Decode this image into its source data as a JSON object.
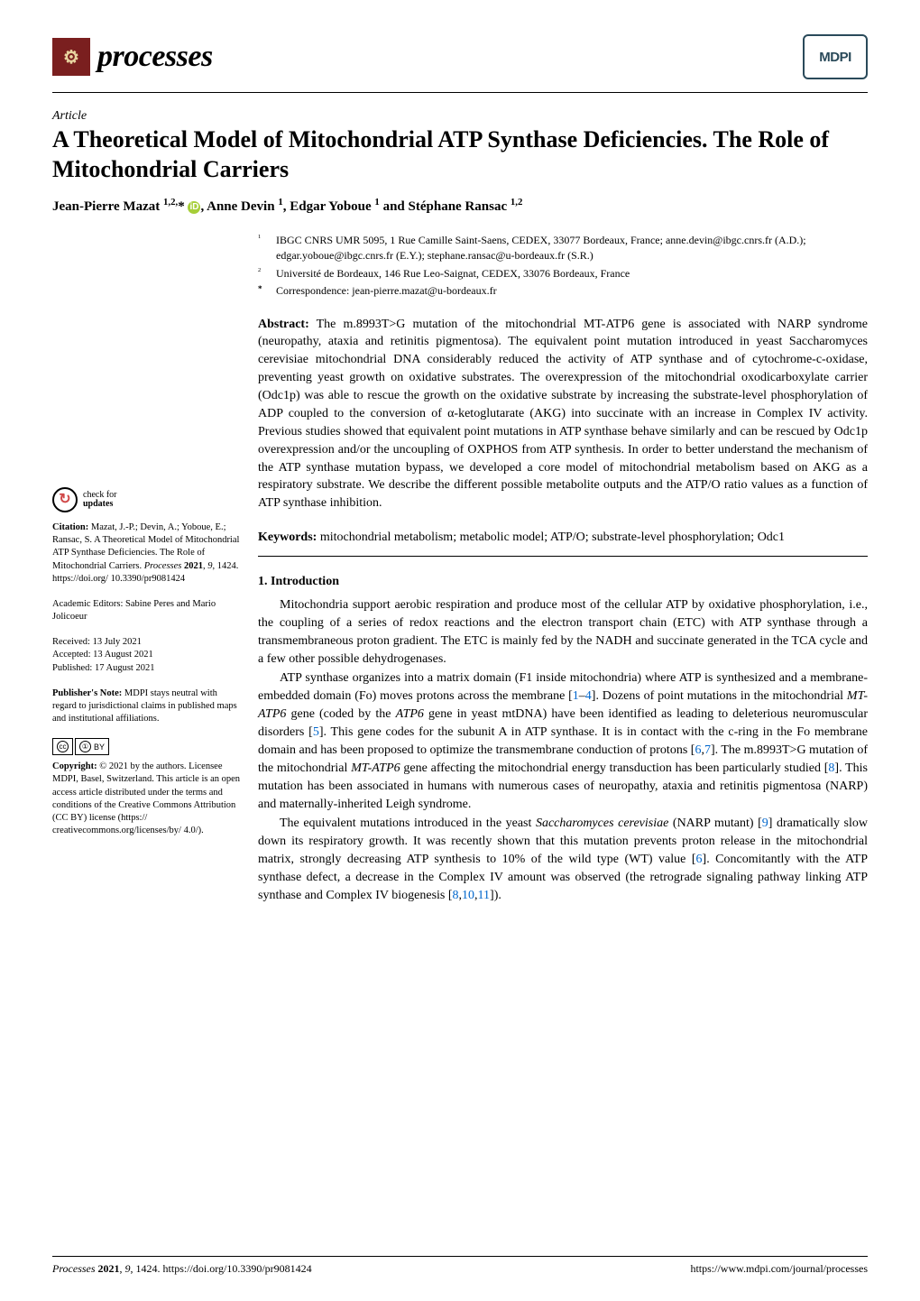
{
  "header": {
    "journal_name": "processes",
    "publisher_logo": "MDPI"
  },
  "article": {
    "type": "Article",
    "title": "A Theoretical Model of Mitochondrial ATP Synthase Deficiencies. The Role of Mitochondrial Carriers",
    "authors_html": "Jean-Pierre Mazat <sup>1,2,</sup>* <span class='orcid'>iD</span>, Anne Devin <sup>1</sup>, Edgar Yoboue <sup>1</sup> and Stéphane Ransac <sup>1,2</sup>"
  },
  "affiliations": [
    {
      "num": "1",
      "text": "IBGC CNRS UMR 5095, 1 Rue Camille Saint-Saens, CEDEX, 33077 Bordeaux, France; anne.devin@ibgc.cnrs.fr (A.D.); edgar.yoboue@ibgc.cnrs.fr (E.Y.); stephane.ransac@u-bordeaux.fr (S.R.)"
    },
    {
      "num": "2",
      "text": "Université de Bordeaux, 146 Rue Leo-Saignat, CEDEX, 33076 Bordeaux, France"
    },
    {
      "num": "*",
      "text": "Correspondence: jean-pierre.mazat@u-bordeaux.fr"
    }
  ],
  "abstract": {
    "label": "Abstract:",
    "text": " The m.8993T>G mutation of the mitochondrial MT-ATP6 gene is associated with NARP syndrome (neuropathy, ataxia and retinitis pigmentosa). The equivalent point mutation introduced in yeast Saccharomyces cerevisiae mitochondrial DNA considerably reduced the activity of ATP synthase and of cytochrome-c-oxidase, preventing yeast growth on oxidative substrates. The overexpression of the mitochondrial oxodicarboxylate carrier (Odc1p) was able to rescue the growth on the oxidative substrate by increasing the substrate-level phosphorylation of ADP coupled to the conversion of α-ketoglutarate (AKG) into succinate with an increase in Complex IV activity. Previous studies showed that equivalent point mutations in ATP synthase behave similarly and can be rescued by Odc1p overexpression and/or the uncoupling of OXPHOS from ATP synthesis. In order to better understand the mechanism of the ATP synthase mutation bypass, we developed a core model of mitochondrial metabolism based on AKG as a respiratory substrate. We describe the different possible metabolite outputs and the ATP/O ratio values as a function of ATP synthase inhibition."
  },
  "keywords": {
    "label": "Keywords:",
    "text": " mitochondrial metabolism; metabolic model; ATP/O; substrate-level phosphorylation; Odc1"
  },
  "intro": {
    "heading": "1. Introduction",
    "p1": "Mitochondria support aerobic respiration and produce most of the cellular ATP by oxidative phosphorylation, i.e., the coupling of a series of redox reactions and the electron transport chain (ETC) with ATP synthase through a transmembraneous proton gradient. The ETC is mainly fed by the NADH and succinate generated in the TCA cycle and a few other possible dehydrogenases.",
    "p2_html": "ATP synthase organizes into a matrix domain (F1 inside mitochondria) where ATP is synthesized and a membrane-embedded domain (Fo) moves protons across the membrane [<span class='ref'>1</span>–<span class='ref'>4</span>]. Dozens of point mutations in the mitochondrial <i>MT-ATP6</i> gene (coded by the <i>ATP6</i> gene in yeast mtDNA) have been identified as leading to deleterious neuromuscular disorders [<span class='ref'>5</span>]. This gene codes for the subunit A in ATP synthase. It is in contact with the c-ring in the Fo membrane domain and has been proposed to optimize the transmembrane conduction of protons [<span class='ref'>6</span>,<span class='ref'>7</span>]. The m.8993T>G mutation of the mitochondrial <i>MT-ATP6</i> gene affecting the mitochondrial energy transduction has been particularly studied [<span class='ref'>8</span>]. This mutation has been associated in humans with numerous cases of neuropathy, ataxia and retinitis pigmentosa (NARP) and maternally-inherited Leigh syndrome.",
    "p3_html": "The equivalent mutations introduced in the yeast <i>Saccharomyces cerevisiae</i> (NARP mutant) [<span class='ref'>9</span>] dramatically slow down its respiratory growth. It was recently shown that this mutation prevents proton release in the mitochondrial matrix, strongly decreasing ATP synthesis to 10% of the wild type (WT) value [<span class='ref'>6</span>]. Concomitantly with the ATP synthase defect, a decrease in the Complex IV amount was observed (the retrograde signaling pathway linking ATP synthase and Complex IV biogenesis [<span class='ref'>8</span>,<span class='ref'>10</span>,<span class='ref'>11</span>])."
  },
  "sidebar": {
    "check_updates_line1": "check for",
    "check_updates_line2": "updates",
    "citation_html": "<b>Citation:</b> Mazat, J.-P.; Devin, A.; Yoboue, E.; Ransac, S. A Theoretical Model of Mitochondrial ATP Synthase Deficiencies. The Role of Mitochondrial Carriers. <i>Processes</i> <b>2021</b>, <i>9</i>, 1424. https://doi.org/ 10.3390/pr9081424",
    "editors": "Academic Editors: Sabine Peres and Mario Jolicoeur",
    "received": "Received: 13 July 2021",
    "accepted": "Accepted: 13 August 2021",
    "published": "Published: 17 August 2021",
    "pubnote_html": "<b>Publisher's Note:</b> MDPI stays neutral with regard to jurisdictional claims in published maps and institutional affiliations.",
    "copyright_html": "<b>Copyright:</b> © 2021 by the authors. Licensee MDPI, Basel, Switzerland. This article is an open access article distributed under the terms and conditions of the Creative Commons Attribution (CC BY) license (https:// creativecommons.org/licenses/by/ 4.0/)."
  },
  "footer": {
    "left_html": "<i>Processes</i> <b>2021</b>, <i>9</i>, 1424. https://doi.org/10.3390/pr9081424",
    "right": "https://www.mdpi.com/journal/processes"
  },
  "colors": {
    "journal_icon_bg": "#7a1f1f",
    "journal_icon_fg": "#e8d4a0",
    "mdpi_border": "#2a4a5a",
    "orcid_bg": "#a6ce39",
    "ref_color": "#0066cc",
    "check_icon_color": "#d04848"
  }
}
